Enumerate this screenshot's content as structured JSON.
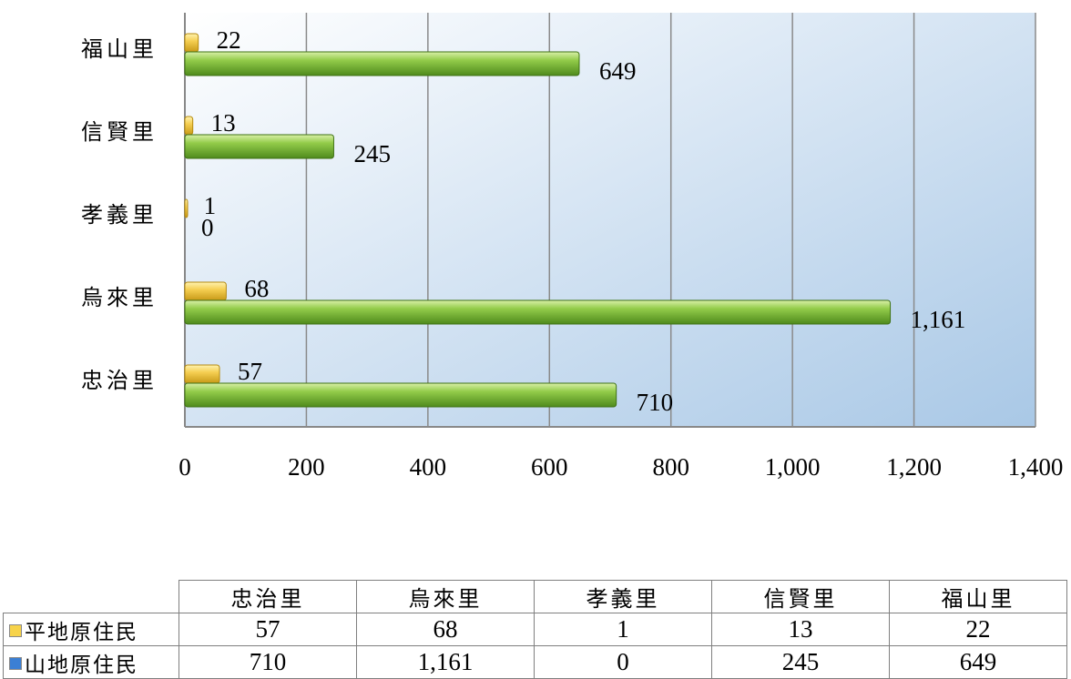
{
  "chart_data": {
    "type": "bar",
    "orientation": "horizontal",
    "categories": [
      "忠治里",
      "烏來里",
      "孝義里",
      "信賢里",
      "福山里"
    ],
    "series": [
      {
        "name": "平地原住民",
        "values": [
          57,
          68,
          1,
          13,
          22
        ],
        "value_labels": [
          "57",
          "68",
          "1",
          "13",
          "22"
        ],
        "color": "#f2c94c"
      },
      {
        "name": "山地原住民",
        "values": [
          710,
          1161,
          0,
          245,
          649
        ],
        "value_labels": [
          "710",
          "1,161",
          "0",
          "245",
          "649"
        ],
        "color": "#8cc63e"
      }
    ],
    "xlim": [
      0,
      1400
    ],
    "xticks": [
      "0",
      "200",
      "400",
      "600",
      "800",
      "1,000",
      "1,200",
      "1,400"
    ],
    "grid": true,
    "legend_colors": {
      "平地原住民": "#f7d34a",
      "山地原住民": "#3b7fd4"
    },
    "title": "",
    "xlabel": "",
    "ylabel": ""
  },
  "table": {
    "header": [
      "忠治里",
      "烏來里",
      "孝義里",
      "信賢里",
      "福山里"
    ],
    "rows": [
      {
        "label": "平地原住民",
        "values": [
          "57",
          "68",
          "1",
          "13",
          "22"
        ]
      },
      {
        "label": "山地原住民",
        "values": [
          "710",
          "1,161",
          "0",
          "245",
          "649"
        ]
      }
    ]
  }
}
